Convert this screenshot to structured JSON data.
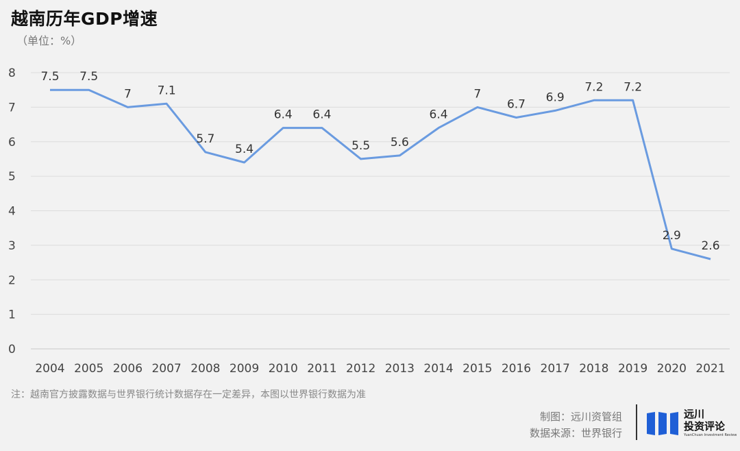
{
  "header": {
    "title": "越南历年GDP增速",
    "unit": "（单位：%）"
  },
  "chart_data": {
    "type": "line",
    "title": "越南历年GDP增速",
    "xlabel": "",
    "ylabel": "（单位：%）",
    "categories": [
      "2004",
      "2005",
      "2006",
      "2007",
      "2008",
      "2009",
      "2010",
      "2011",
      "2012",
      "2013",
      "2014",
      "2015",
      "2016",
      "2017",
      "2018",
      "2019",
      "2020",
      "2021"
    ],
    "series": [
      {
        "name": "GDP增速",
        "values": [
          7.5,
          7.5,
          7,
          7.1,
          5.7,
          5.4,
          6.4,
          6.4,
          5.5,
          5.6,
          6.4,
          7,
          6.7,
          6.9,
          7.2,
          7.2,
          2.9,
          2.6
        ]
      }
    ],
    "data_labels": [
      "7.5",
      "7.5",
      "7",
      "7.1",
      "5.7",
      "5.4",
      "6.4",
      "6.4",
      "5.5",
      "5.6",
      "6.4",
      "7",
      "6.7",
      "6.9",
      "7.2",
      "7.2",
      "2.9",
      "2.6"
    ],
    "yticks": [
      "0",
      "1",
      "2",
      "3",
      "4",
      "5",
      "6",
      "7",
      "8"
    ],
    "ylim": [
      0,
      8
    ],
    "grid": true,
    "line_color": "#6a9be0"
  },
  "footer": {
    "note": "注：越南官方披露数据与世界银行统计数据存在一定差异，本图以世界银行数据为准",
    "made_by": "制图：远川资管组",
    "source": "数据来源：世界银行",
    "logo_name_line1": "远川",
    "logo_name_line2": "投资评论",
    "logo_sub": "YuanChuan Investment Review",
    "logo_color": "#1f5fd6"
  }
}
